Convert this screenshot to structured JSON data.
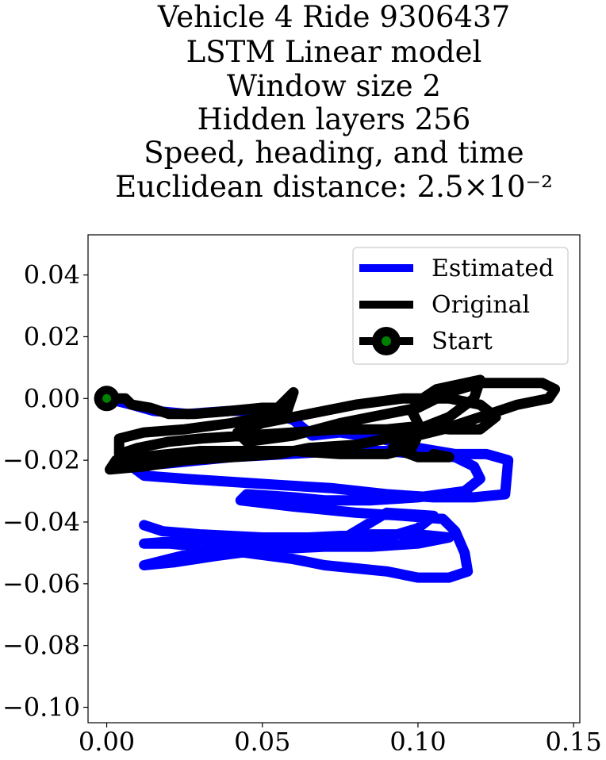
{
  "chart_data": {
    "type": "line",
    "title_lines": [
      "Vehicle 4 Ride 9306437",
      "LSTM Linear model",
      "Window size 2",
      "Hidden layers 256",
      "Speed, heading, and time",
      "Euclidean distance: 2.5×10⁻²"
    ],
    "xlabel": "",
    "ylabel": "",
    "xlim": [
      -0.006,
      0.152
    ],
    "ylim": [
      -0.105,
      0.053
    ],
    "x_ticks": [
      "0.00",
      "0.05",
      "0.10",
      "0.15"
    ],
    "x_tick_values": [
      0.0,
      0.05,
      0.1,
      0.15
    ],
    "y_ticks": [
      "0.04",
      "0.02",
      "0.00",
      "−0.02",
      "−0.04",
      "−0.06",
      "−0.08",
      "−0.10"
    ],
    "y_tick_values": [
      0.04,
      0.02,
      0.0,
      -0.02,
      -0.04,
      -0.06,
      -0.08,
      -0.1
    ],
    "grid": false,
    "legend_position": "top-right",
    "series": [
      {
        "name": "Estimated",
        "color": "#0000ff",
        "points": [
          [
            0.0,
            0.0
          ],
          [
            0.008,
            -0.002
          ],
          [
            0.015,
            -0.004
          ],
          [
            0.026,
            -0.005
          ],
          [
            0.04,
            -0.004
          ],
          [
            0.052,
            -0.004
          ],
          [
            0.06,
            -0.007
          ],
          [
            0.066,
            -0.012
          ],
          [
            0.075,
            -0.011
          ],
          [
            0.088,
            -0.013
          ],
          [
            0.1,
            -0.016
          ],
          [
            0.112,
            -0.018
          ],
          [
            0.122,
            -0.018
          ],
          [
            0.129,
            -0.02
          ],
          [
            0.128,
            -0.031
          ],
          [
            0.118,
            -0.032
          ],
          [
            0.105,
            -0.032
          ],
          [
            0.09,
            -0.031
          ],
          [
            0.072,
            -0.029
          ],
          [
            0.055,
            -0.028
          ],
          [
            0.04,
            -0.027
          ],
          [
            0.025,
            -0.026
          ],
          [
            0.012,
            -0.025
          ],
          [
            0.008,
            -0.022
          ],
          [
            0.02,
            -0.021
          ],
          [
            0.04,
            -0.019
          ],
          [
            0.058,
            -0.018
          ],
          [
            0.075,
            -0.017
          ],
          [
            0.09,
            -0.017
          ],
          [
            0.1,
            -0.018
          ],
          [
            0.112,
            -0.019
          ],
          [
            0.118,
            -0.022
          ],
          [
            0.12,
            -0.026
          ],
          [
            0.115,
            -0.03
          ],
          [
            0.1,
            -0.032
          ],
          [
            0.085,
            -0.033
          ],
          [
            0.07,
            -0.033
          ],
          [
            0.06,
            -0.032
          ],
          [
            0.045,
            -0.031
          ],
          [
            0.043,
            -0.033
          ],
          [
            0.06,
            -0.035
          ],
          [
            0.08,
            -0.037
          ],
          [
            0.095,
            -0.038
          ],
          [
            0.108,
            -0.039
          ],
          [
            0.112,
            -0.043
          ],
          [
            0.115,
            -0.05
          ],
          [
            0.116,
            -0.056
          ],
          [
            0.11,
            -0.058
          ],
          [
            0.1,
            -0.058
          ],
          [
            0.09,
            -0.056
          ],
          [
            0.08,
            -0.055
          ],
          [
            0.07,
            -0.054
          ],
          [
            0.06,
            -0.052
          ],
          [
            0.045,
            -0.05
          ],
          [
            0.03,
            -0.048
          ],
          [
            0.02,
            -0.047
          ],
          [
            0.012,
            -0.047
          ],
          [
            0.025,
            -0.046
          ],
          [
            0.045,
            -0.045
          ],
          [
            0.065,
            -0.045
          ],
          [
            0.085,
            -0.044
          ],
          [
            0.1,
            -0.044
          ],
          [
            0.11,
            -0.045
          ],
          [
            0.1,
            -0.047
          ],
          [
            0.085,
            -0.048
          ],
          [
            0.07,
            -0.048
          ],
          [
            0.05,
            -0.049
          ],
          [
            0.035,
            -0.051
          ],
          [
            0.022,
            -0.053
          ],
          [
            0.012,
            -0.054
          ],
          [
            0.02,
            -0.052
          ],
          [
            0.032,
            -0.049
          ],
          [
            0.048,
            -0.047
          ],
          [
            0.062,
            -0.047
          ],
          [
            0.078,
            -0.046
          ],
          [
            0.09,
            -0.045
          ],
          [
            0.1,
            -0.042
          ],
          [
            0.105,
            -0.038
          ],
          [
            0.09,
            -0.037
          ],
          [
            0.08,
            -0.043
          ],
          [
            0.075,
            -0.046
          ],
          [
            0.05,
            -0.045
          ],
          [
            0.03,
            -0.044
          ],
          [
            0.018,
            -0.043
          ],
          [
            0.012,
            -0.041
          ]
        ]
      },
      {
        "name": "Original",
        "color": "#000000",
        "points": [
          [
            0.0,
            0.0
          ],
          [
            0.006,
            0.0
          ],
          [
            0.008,
            -0.002
          ],
          [
            0.014,
            -0.003
          ],
          [
            0.02,
            -0.005
          ],
          [
            0.028,
            -0.005
          ],
          [
            0.04,
            -0.004
          ],
          [
            0.05,
            -0.003
          ],
          [
            0.055,
            -0.003
          ],
          [
            0.06,
            0.002
          ],
          [
            0.058,
            -0.004
          ],
          [
            0.05,
            -0.006
          ],
          [
            0.04,
            -0.008
          ],
          [
            0.025,
            -0.01
          ],
          [
            0.012,
            -0.011
          ],
          [
            0.004,
            -0.013
          ],
          [
            0.004,
            -0.018
          ],
          [
            0.01,
            -0.016
          ],
          [
            0.02,
            -0.014
          ],
          [
            0.03,
            -0.013
          ],
          [
            0.045,
            -0.012
          ],
          [
            0.06,
            -0.011
          ],
          [
            0.075,
            -0.01
          ],
          [
            0.09,
            -0.01
          ],
          [
            0.1,
            -0.009
          ],
          [
            0.11,
            -0.01
          ],
          [
            0.12,
            -0.01
          ],
          [
            0.125,
            -0.006
          ],
          [
            0.12,
            -0.002
          ],
          [
            0.11,
            0.0
          ],
          [
            0.095,
            0.0
          ],
          [
            0.08,
            -0.002
          ],
          [
            0.065,
            -0.005
          ],
          [
            0.05,
            -0.008
          ],
          [
            0.042,
            -0.011
          ],
          [
            0.045,
            -0.014
          ],
          [
            0.06,
            -0.012
          ],
          [
            0.075,
            -0.008
          ],
          [
            0.09,
            -0.005
          ],
          [
            0.1,
            -0.003
          ],
          [
            0.11,
            0.002
          ],
          [
            0.12,
            0.005
          ],
          [
            0.13,
            0.005
          ],
          [
            0.14,
            0.005
          ],
          [
            0.144,
            0.003
          ],
          [
            0.142,
            0.0
          ],
          [
            0.132,
            -0.002
          ],
          [
            0.12,
            -0.006
          ],
          [
            0.108,
            -0.01
          ],
          [
            0.1,
            -0.012
          ],
          [
            0.098,
            -0.016
          ],
          [
            0.09,
            -0.018
          ],
          [
            0.075,
            -0.018
          ],
          [
            0.06,
            -0.017
          ],
          [
            0.045,
            -0.017
          ],
          [
            0.03,
            -0.017
          ],
          [
            0.02,
            -0.018
          ],
          [
            0.01,
            -0.019
          ],
          [
            0.003,
            -0.02
          ],
          [
            0.001,
            -0.023
          ],
          [
            0.012,
            -0.022
          ],
          [
            0.025,
            -0.02
          ],
          [
            0.04,
            -0.019
          ],
          [
            0.055,
            -0.018
          ],
          [
            0.065,
            -0.016
          ],
          [
            0.08,
            -0.015
          ],
          [
            0.095,
            -0.012
          ],
          [
            0.1,
            -0.008
          ],
          [
            0.098,
            -0.004
          ],
          [
            0.1,
            -0.001
          ],
          [
            0.106,
            0.003
          ],
          [
            0.12,
            0.006
          ],
          [
            0.118,
            0.0
          ],
          [
            0.11,
            -0.006
          ],
          [
            0.1,
            -0.01
          ],
          [
            0.092,
            -0.016
          ],
          [
            0.1,
            -0.019
          ],
          [
            0.11,
            -0.019
          ],
          [
            0.105,
            -0.018
          ]
        ]
      }
    ],
    "start": {
      "name": "Start",
      "point": [
        0.0,
        0.0
      ],
      "marker_face": "#008000",
      "marker_edge": "#000000"
    }
  }
}
